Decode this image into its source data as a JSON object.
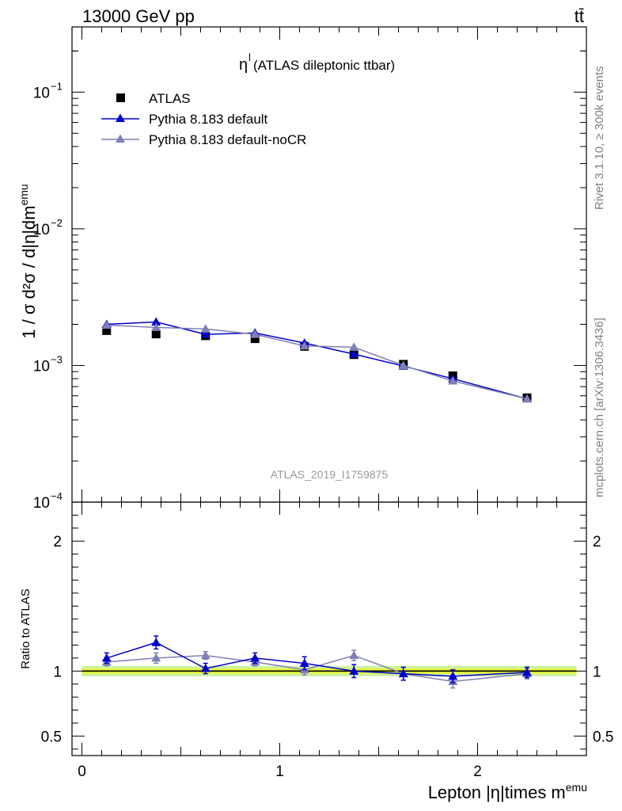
{
  "header": {
    "energy_label": "13000 GeV pp",
    "process_label": "tt̄"
  },
  "side_labels": {
    "rivet": "Rivet 3.1.10, ≥ 300k events",
    "mcplots": "mcplots.cern.ch [arXiv:1306.3436]"
  },
  "chart_data": [
    {
      "type": "line",
      "panel": "main",
      "title_symbol": "η",
      "title_superscript": "l",
      "title_text": " (ATLAS dileptonic ttbar)",
      "ylabel": "1 / σ d²σ / d|η|dm^emu",
      "yscale": "log",
      "ylim": [
        0.0001,
        0.3
      ],
      "xlim": [
        -0.05,
        2.55
      ],
      "ytick_labels": [
        {
          "base": "10",
          "exp": "−1",
          "value": 0.1
        },
        {
          "base": "10",
          "exp": "−2",
          "value": 0.01
        },
        {
          "base": "10",
          "exp": "−3",
          "value": 0.001
        },
        {
          "base": "10",
          "exp": "−4",
          "value": 0.0001
        }
      ],
      "watermark": "ATLAS_2019_I1759875",
      "x": [
        0.125,
        0.375,
        0.625,
        0.875,
        1.125,
        1.375,
        1.625,
        1.875,
        2.25
      ],
      "series": [
        {
          "name": "ATLAS",
          "style": "data",
          "color": "#000000",
          "values": [
            0.0018,
            0.0017,
            0.00165,
            0.00157,
            0.00138,
            0.0012,
            0.00102,
            0.00084,
            0.00058
          ]
        },
        {
          "name": "Pythia 8.183 default",
          "style": "mc",
          "color": "#0000cc",
          "values": [
            0.002,
            0.00208,
            0.00169,
            0.00173,
            0.00146,
            0.00121,
            0.00099,
            0.0008,
            0.00057
          ]
        },
        {
          "name": "Pythia 8.183 default-noCR",
          "style": "mc",
          "color": "#7f7fb8",
          "values": [
            0.00197,
            0.0019,
            0.00185,
            0.00169,
            0.00139,
            0.00136,
            0.001,
            0.00077,
            0.00057
          ]
        }
      ]
    },
    {
      "type": "line",
      "panel": "ratio",
      "ylabel": "Ratio to ATLAS",
      "xlabel": "Lepton |η|times m^emu",
      "ylim": [
        0.35,
        2.3
      ],
      "ytick_labels": [
        {
          "text": "2",
          "value": 2
        },
        {
          "text": "1",
          "value": 1
        },
        {
          "text": "0.5",
          "value": 0.5
        }
      ],
      "xtick_labels": [
        {
          "text": "0",
          "value": 0
        },
        {
          "text": "1",
          "value": 1
        },
        {
          "text": "2",
          "value": 2
        }
      ],
      "band": {
        "inner": [
          0.98,
          1.02
        ],
        "outer": [
          0.96,
          1.04
        ],
        "inner_color": "#e6f53a",
        "outer_color": "#cff0a3"
      },
      "x": [
        0.125,
        0.375,
        0.625,
        0.875,
        1.125,
        1.375,
        1.625,
        1.875,
        2.25
      ],
      "series": [
        {
          "name": "Pythia 8.183 default",
          "color": "#0000cc",
          "values": [
            1.1,
            1.22,
            1.02,
            1.1,
            1.06,
            1.0,
            0.98,
            0.96,
            0.99
          ],
          "err": [
            0.04,
            0.05,
            0.04,
            0.04,
            0.05,
            0.05,
            0.05,
            0.05,
            0.04
          ]
        },
        {
          "name": "Pythia 8.183 default-noCR",
          "color": "#7f7fb8",
          "values": [
            1.07,
            1.1,
            1.12,
            1.07,
            1.01,
            1.12,
            0.98,
            0.92,
            0.98
          ],
          "err": [
            0.03,
            0.04,
            0.03,
            0.03,
            0.04,
            0.04,
            0.05,
            0.05,
            0.04
          ]
        }
      ]
    }
  ]
}
